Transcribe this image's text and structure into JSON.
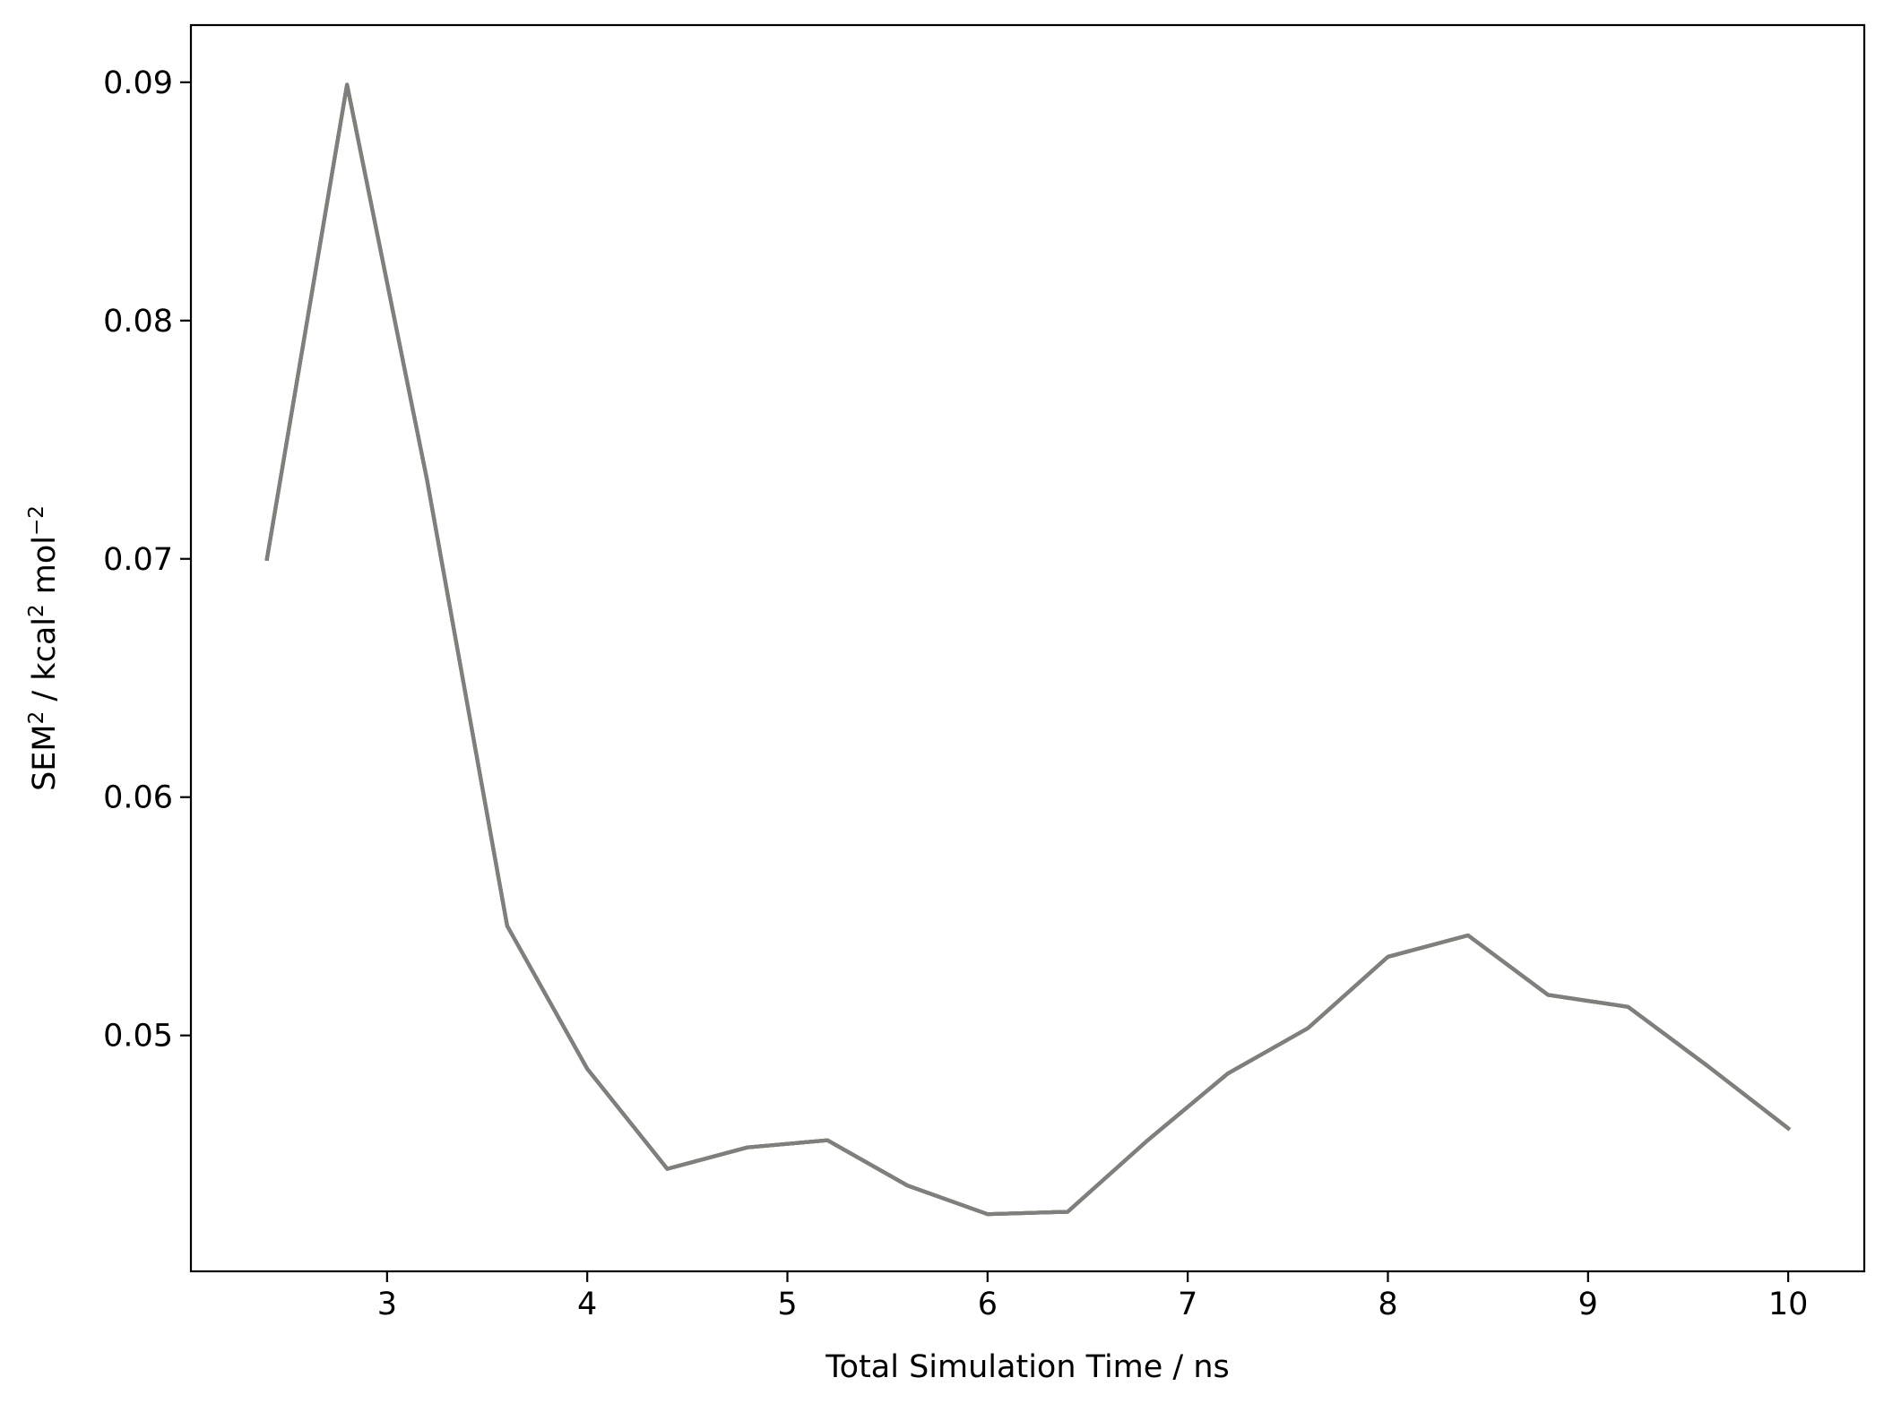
{
  "chart_data": {
    "type": "line",
    "xlabel": "Total Simulation Time / ns",
    "ylabel_parts": {
      "a": "SEM",
      "a_sup": "2",
      "b": " / kcal",
      "b_sup": "2",
      "c": " mol",
      "c_sup": "−2"
    },
    "xlim": [
      2.02,
      10.38
    ],
    "ylim": [
      0.0401,
      0.0924
    ],
    "xticks": [
      {
        "value": 3,
        "label": "3"
      },
      {
        "value": 4,
        "label": "4"
      },
      {
        "value": 5,
        "label": "5"
      },
      {
        "value": 6,
        "label": "6"
      },
      {
        "value": 7,
        "label": "7"
      },
      {
        "value": 8,
        "label": "8"
      },
      {
        "value": 9,
        "label": "9"
      },
      {
        "value": 10,
        "label": "10"
      }
    ],
    "yticks": [
      {
        "value": 0.05,
        "label": "0.05"
      },
      {
        "value": 0.06,
        "label": "0.06"
      },
      {
        "value": 0.07,
        "label": "0.07"
      },
      {
        "value": 0.08,
        "label": "0.08"
      },
      {
        "value": 0.09,
        "label": "0.09"
      }
    ],
    "grid": false,
    "series": [
      {
        "color": "#1f77b4",
        "x": [
          2.4,
          2.8,
          3.2,
          3.6,
          4.0,
          4.4,
          4.8,
          5.2,
          5.6,
          6.0,
          6.4,
          6.8,
          7.2,
          7.6,
          8.0,
          8.4,
          8.8,
          9.2,
          9.6,
          10.0
        ],
        "y": [
          0.07,
          0.0899,
          0.0733,
          0.0546,
          0.0486,
          0.0444,
          0.0453,
          0.0456,
          0.0437,
          0.0425,
          0.0426,
          0.0456,
          0.0484,
          0.0503,
          0.0533,
          0.0542,
          0.0517,
          0.0512,
          0.0487,
          0.0461
        ]
      },
      {
        "color": "#ff7f0e",
        "x": [
          2.4,
          2.8,
          3.2,
          3.6,
          4.0,
          4.4,
          4.8,
          5.2,
          5.6,
          6.0,
          6.4,
          6.8,
          7.2,
          7.6,
          8.0,
          8.4,
          8.8,
          9.2,
          9.6,
          10.0
        ],
        "y": [
          0.07,
          0.0899,
          0.0733,
          0.0546,
          0.0486,
          0.0444,
          0.0453,
          0.0456,
          0.0437,
          0.0425,
          0.0426,
          0.0456,
          0.0484,
          0.0503,
          0.0533,
          0.0542,
          0.0517,
          0.0512,
          0.0487,
          0.0461
        ]
      },
      {
        "color": "#2ca02c",
        "x": [
          2.4,
          2.8,
          3.2,
          3.6,
          4.0,
          4.4,
          4.8,
          5.2,
          5.6,
          6.0,
          6.4,
          6.8,
          7.2,
          7.6,
          8.0,
          8.4,
          8.8,
          9.2,
          9.6,
          10.0
        ],
        "y": [
          0.07,
          0.0899,
          0.0733,
          0.0546,
          0.0486,
          0.0444,
          0.0453,
          0.0456,
          0.0437,
          0.0425,
          0.0426,
          0.0456,
          0.0484,
          0.0503,
          0.0533,
          0.0542,
          0.0517,
          0.0512,
          0.0487,
          0.0461
        ]
      },
      {
        "color": "#7f7f7f",
        "x": [
          2.4,
          2.8,
          3.2,
          3.6,
          4.0,
          4.4,
          4.8,
          5.2,
          5.6,
          6.0,
          6.4,
          6.8,
          7.2,
          7.6,
          8.0,
          8.4,
          8.8,
          9.2,
          9.6,
          10.0
        ],
        "y": [
          0.07,
          0.0899,
          0.0733,
          0.0546,
          0.0486,
          0.0444,
          0.0453,
          0.0456,
          0.0437,
          0.0425,
          0.0426,
          0.0456,
          0.0484,
          0.0503,
          0.0533,
          0.0542,
          0.0517,
          0.0512,
          0.0487,
          0.0461
        ]
      }
    ]
  }
}
